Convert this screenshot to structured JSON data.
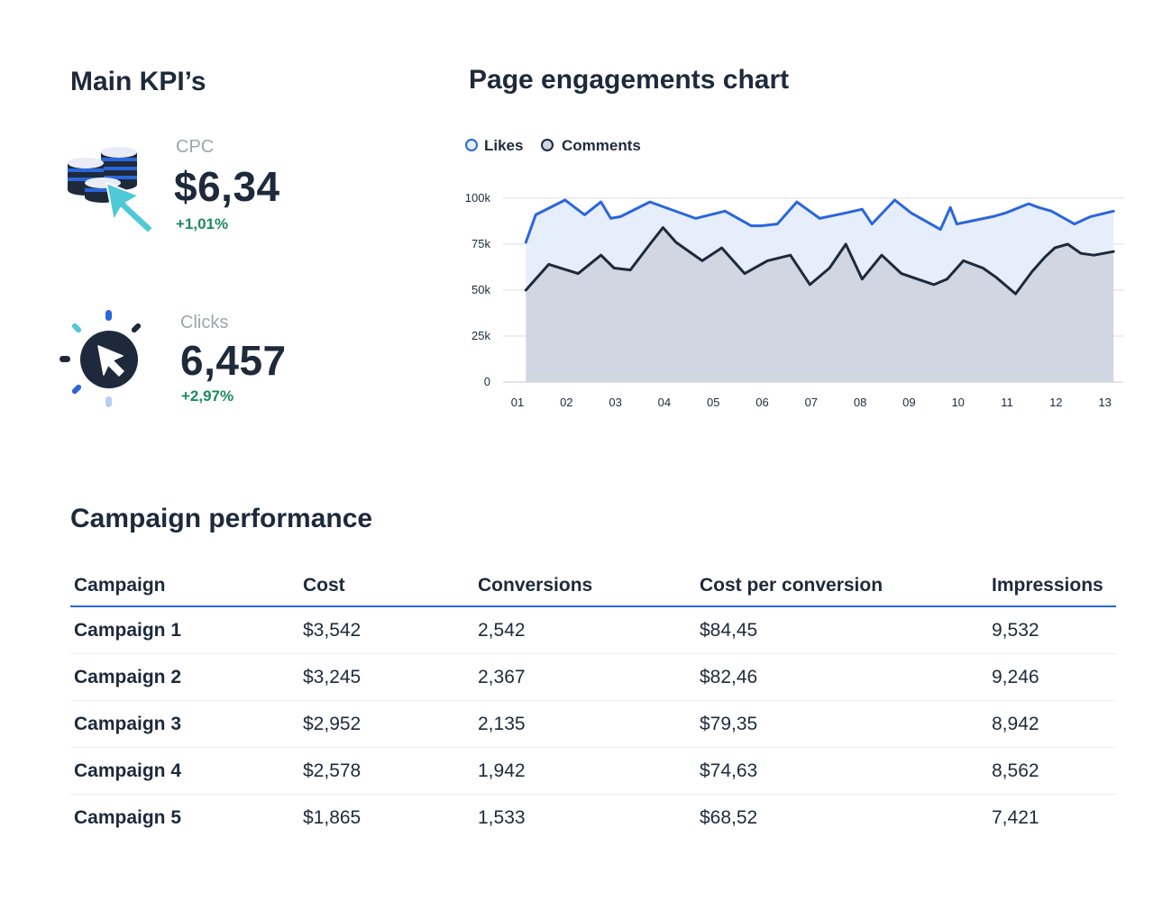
{
  "kpis": {
    "title": "Main KPI’s",
    "cpc": {
      "label": "CPC",
      "value": "$6,34",
      "delta": "+1,01%"
    },
    "clicks": {
      "label": "Clicks",
      "value": "6,457",
      "delta": "+2,97%"
    }
  },
  "colors": {
    "text": "#1e2a3b",
    "likes": "#2a66db",
    "likes_fill": "#e6eefc",
    "comments": "#1e2a3b",
    "comments_fill": "#d0d6e2",
    "positive": "#1e8a5e",
    "muted": "#9ea5ae",
    "cyan": "#4ec9d8"
  },
  "chart_title": "Page engagements chart",
  "chart_data": {
    "type": "area",
    "title": "Page engagements chart",
    "categories": [
      "01",
      "02",
      "03",
      "04",
      "05",
      "06",
      "07",
      "08",
      "09",
      "10",
      "11",
      "12",
      "13"
    ],
    "ylim": [
      0,
      100000
    ],
    "yticks": [
      0,
      25000,
      50000,
      75000,
      100000
    ],
    "ytick_labels": [
      "0",
      "25k",
      "50k",
      "75k",
      "100k"
    ],
    "grid": true,
    "legend_position": "top-left",
    "series": [
      {
        "name": "Likes",
        "x": [
          0.7,
          1.0,
          1.9,
          2.5,
          3.0,
          3.3,
          3.6,
          4.5,
          5.9,
          6.8,
          7.6,
          7.9,
          8.4,
          9.0,
          9.7,
          10.5,
          11.0,
          11.3,
          12.0,
          12.5,
          13.4,
          13.7,
          13.9,
          15.0,
          15.4,
          16.1,
          16.4,
          16.8,
          17.5,
          18.0,
          18.7
        ],
        "values": [
          76000,
          91000,
          99000,
          91000,
          98000,
          89000,
          90000,
          98000,
          89000,
          93000,
          85000,
          85000,
          86000,
          98000,
          89000,
          92000,
          94000,
          86000,
          99000,
          92000,
          83000,
          95000,
          86000,
          90000,
          92000,
          97000,
          95000,
          93000,
          86000,
          90000,
          93000
        ]
      },
      {
        "name": "Comments",
        "x": [
          0.7,
          0.9,
          1.4,
          2.3,
          3.0,
          3.4,
          3.9,
          4.5,
          4.9,
          5.3,
          6.1,
          6.7,
          7.4,
          8.1,
          8.8,
          9.4,
          10.0,
          10.5,
          11.0,
          11.6,
          12.2,
          12.7,
          13.2,
          13.6,
          14.1,
          14.7,
          15.1,
          15.7,
          16.2,
          16.6,
          16.9,
          17.3,
          17.7,
          18.1,
          18.7
        ],
        "values": [
          50000,
          54000,
          64000,
          59000,
          69000,
          62000,
          61000,
          75000,
          84000,
          76000,
          66000,
          73000,
          59000,
          66000,
          69000,
          53000,
          62000,
          75000,
          56000,
          69000,
          59000,
          56000,
          53000,
          56000,
          66000,
          62000,
          57000,
          48000,
          60000,
          68000,
          73000,
          75000,
          70000,
          69000,
          71000
        ]
      }
    ]
  },
  "campaign": {
    "title": "Campaign performance",
    "columns": [
      "Campaign",
      "Cost",
      "Conversions",
      "Cost per conversion",
      "Impressions"
    ],
    "rows": [
      [
        "Campaign 1",
        "$3,542",
        "2,542",
        "$84,45",
        "9,532"
      ],
      [
        "Campaign 2",
        "$3,245",
        "2,367",
        "$82,46",
        "9,246"
      ],
      [
        "Campaign 3",
        "$2,952",
        "2,135",
        "$79,35",
        "8,942"
      ],
      [
        "Campaign 4",
        "$2,578",
        "1,942",
        "$74,63",
        "8,562"
      ],
      [
        "Campaign 5",
        "$1,865",
        "1,533",
        "$68,52",
        "7,421"
      ]
    ]
  }
}
